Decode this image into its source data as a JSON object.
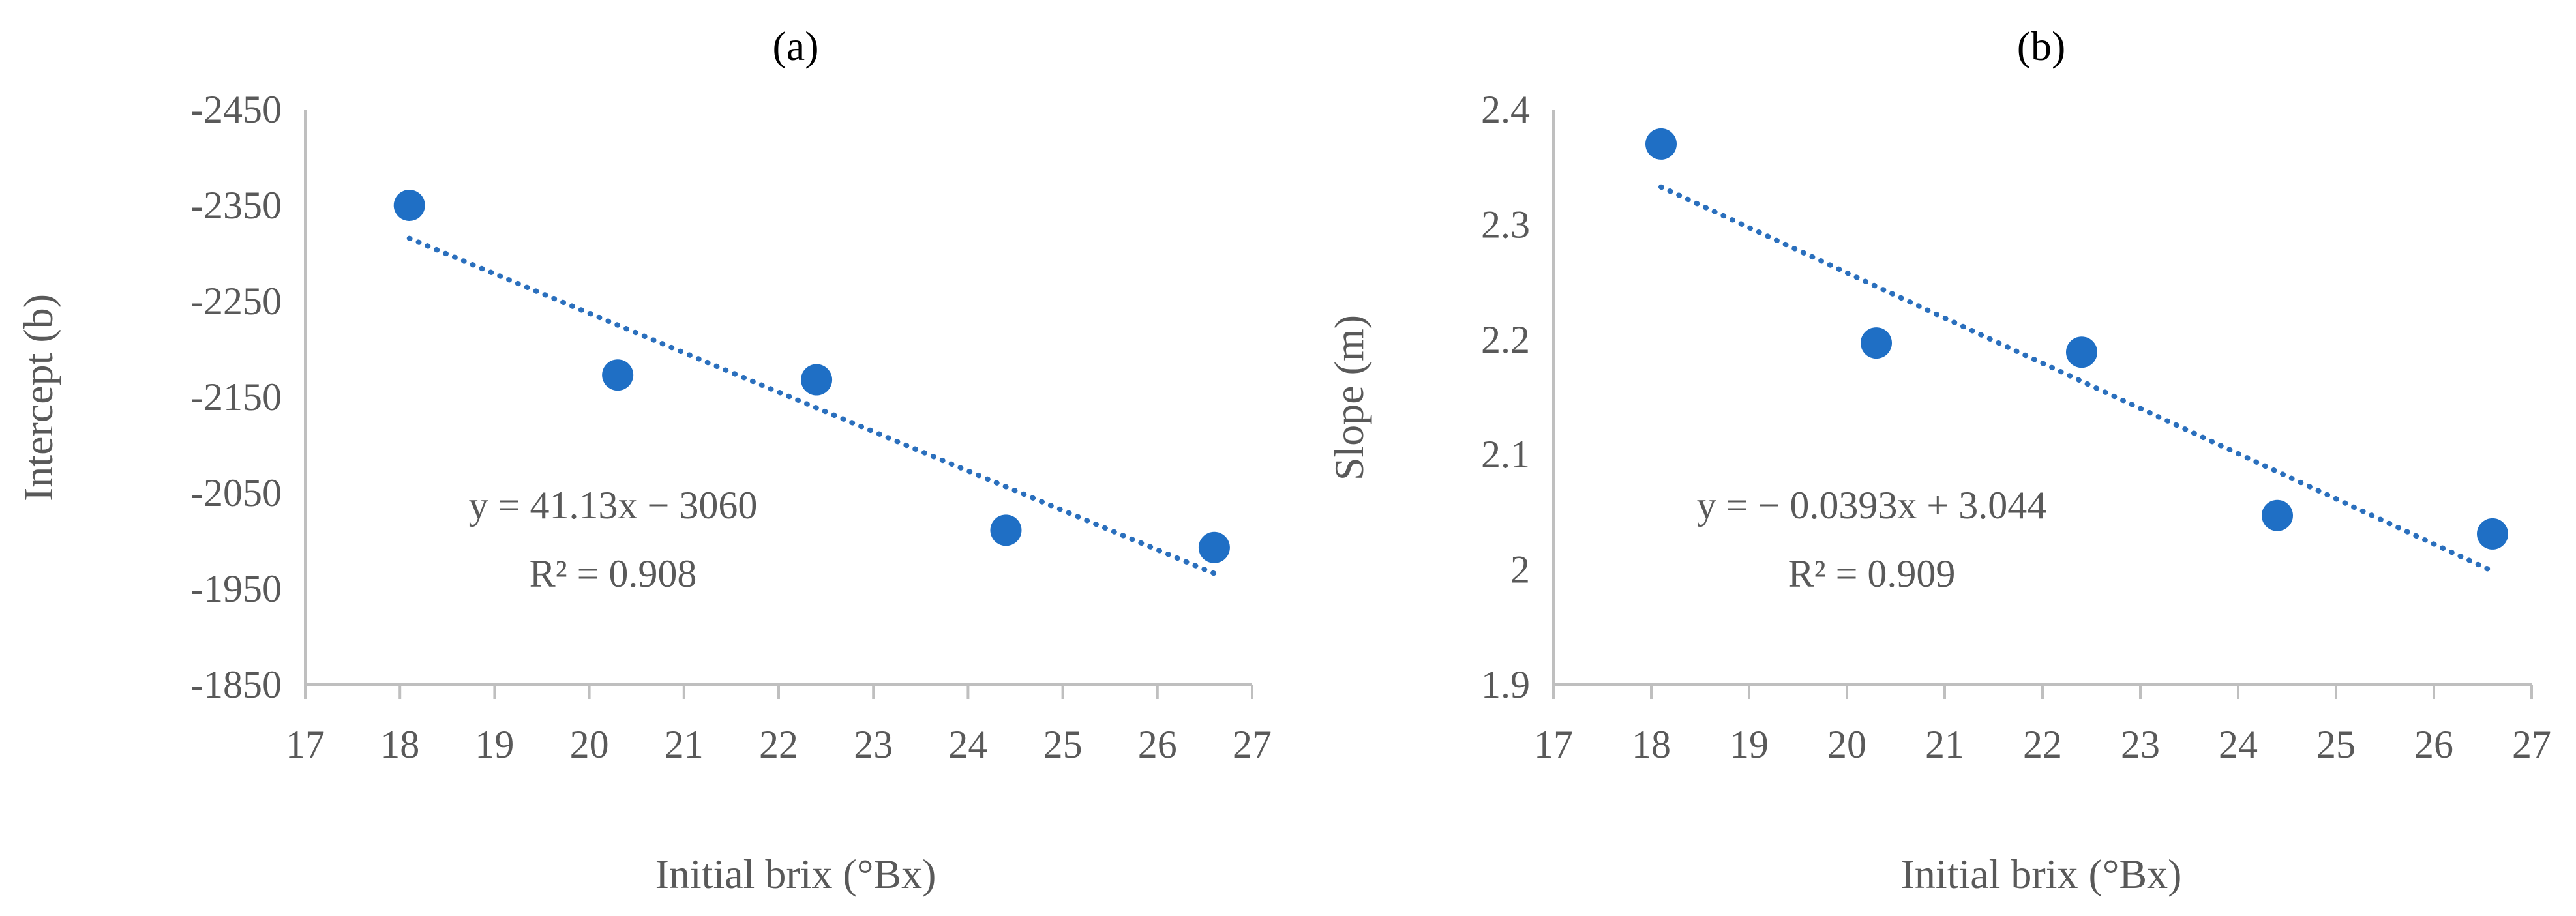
{
  "colors": {
    "point": "#1f6fc5",
    "trendline": "#2a6fbd",
    "axis": "#bfbfbf",
    "text": "#595959"
  },
  "chart_data": [
    {
      "type": "scatter",
      "title": "(a)",
      "xlabel": "Initial brix (°Bx)",
      "ylabel": "Intercept (b)",
      "xlim": [
        17,
        27
      ],
      "ylim": [
        -2450,
        -1850
      ],
      "y_reversed": true,
      "x_ticks": [
        "17",
        "18",
        "19",
        "20",
        "21",
        "22",
        "23",
        "24",
        "25",
        "26",
        "27"
      ],
      "y_ticks": [
        "-2450",
        "-2350",
        "-2250",
        "-2150",
        "-2050",
        "-1950",
        "-1850"
      ],
      "grid": false,
      "legend": "none",
      "series": [
        {
          "x": [
            18.1,
            20.3,
            22.4,
            24.4,
            26.6
          ],
          "y": [
            -2350,
            -2173,
            -2168,
            -2011,
            -1993
          ]
        }
      ],
      "trendline": {
        "type": "linear",
        "slope": 41.13,
        "intercept": -3060,
        "x_range": [
          18.1,
          26.6
        ]
      },
      "annotations": [
        "y = 41.13x − 3060",
        "R² = 0.908"
      ]
    },
    {
      "type": "scatter",
      "title": "(b)",
      "xlabel": "Initial brix (°Bx)",
      "ylabel": "Slope (m)",
      "xlim": [
        17,
        27
      ],
      "ylim": [
        1.9,
        2.4
      ],
      "y_reversed": false,
      "x_ticks": [
        "17",
        "18",
        "19",
        "20",
        "21",
        "22",
        "23",
        "24",
        "25",
        "26",
        "27"
      ],
      "y_ticks": [
        "1.9",
        "2",
        "2.1",
        "2.2",
        "2.3",
        "2.4"
      ],
      "grid": false,
      "legend": "none",
      "series": [
        {
          "x": [
            18.1,
            20.3,
            22.4,
            24.4,
            26.6
          ],
          "y": [
            2.37,
            2.197,
            2.189,
            2.047,
            2.031
          ]
        }
      ],
      "trendline": {
        "type": "linear",
        "slope": -0.0393,
        "intercept": 3.044,
        "x_range": [
          18.1,
          26.6
        ]
      },
      "annotations": [
        "y = − 0.0393x + 3.044",
        "R² = 0.909"
      ]
    }
  ]
}
